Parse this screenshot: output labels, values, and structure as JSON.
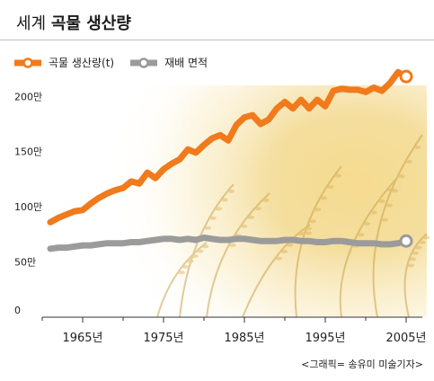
{
  "header": {
    "title_part1": "세계",
    "title_part2": "곡물 생산량"
  },
  "credit": "<그래픽= 송유미 미술기자>",
  "colors": {
    "series_production": "#f07a1c",
    "series_area": "#9b9b9b",
    "axis": "#333333",
    "background_image_tone": "#f3d58a"
  },
  "chart_data": {
    "type": "line",
    "title": "세계 곡물 생산량",
    "xlabel": "",
    "ylabel": "",
    "xlim": [
      1960,
      2007
    ],
    "ylim": [
      0,
      210
    ],
    "x_ticks": [
      1965,
      1975,
      1985,
      1995,
      2005
    ],
    "x_tick_labels": [
      "1965년",
      "1975년",
      "1985년",
      "1995년",
      "2005년"
    ],
    "y_ticks": [
      0,
      50,
      100,
      150,
      200
    ],
    "y_tick_labels": [
      "0",
      "50만",
      "100만",
      "150만",
      "200만"
    ],
    "grid": false,
    "legend_position": "top-left",
    "x": [
      1961,
      1962,
      1963,
      1964,
      1965,
      1966,
      1967,
      1968,
      1969,
      1970,
      1971,
      1972,
      1973,
      1974,
      1975,
      1976,
      1977,
      1978,
      1979,
      1980,
      1981,
      1982,
      1983,
      1984,
      1985,
      1986,
      1987,
      1988,
      1989,
      1990,
      1991,
      1992,
      1993,
      1994,
      1995,
      1996,
      1997,
      1998,
      1999,
      2000,
      2001,
      2002,
      2003,
      2004,
      2005
    ],
    "series": [
      {
        "name": "곡물 생산량(t)",
        "color": "#f07a1c",
        "values": [
          86,
          90,
          93,
          96,
          97,
          103,
          108,
          112,
          115,
          117,
          123,
          121,
          131,
          126,
          134,
          139,
          143,
          152,
          149,
          156,
          162,
          165,
          160,
          174,
          181,
          183,
          175,
          179,
          189,
          195,
          189,
          197,
          189,
          197,
          191,
          205,
          207,
          206,
          206,
          204,
          208,
          205,
          212,
          222,
          218
        ]
      },
      {
        "name": "재배 면적",
        "color": "#9b9b9b",
        "values": [
          62,
          63,
          63,
          64,
          65,
          65,
          66,
          67,
          67,
          67,
          68,
          68,
          69,
          70,
          71,
          71,
          70,
          71,
          70,
          72,
          71,
          70,
          70,
          71,
          71,
          70,
          69,
          69,
          69,
          70,
          70,
          69,
          69,
          68,
          68,
          69,
          69,
          68,
          67,
          67,
          67,
          66,
          66,
          67,
          69
        ]
      }
    ]
  }
}
